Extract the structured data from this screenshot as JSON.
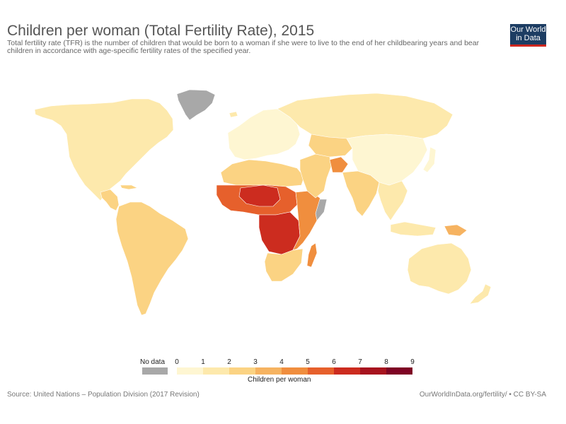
{
  "header": {
    "title": "Children per woman (Total Fertility Rate), 2015",
    "subtitle": "Total fertility rate (TFR) is the number of children that would be born to a woman if she were to live to the end of her childbearing years and bear children in accordance with age-specific fertility rates of the specified year."
  },
  "logo": {
    "line1": "Our World",
    "line2": "in Data"
  },
  "legend": {
    "no_data_label": "No data",
    "no_data_color": "#a8a8a8",
    "ticks": [
      "0",
      "1",
      "2",
      "3",
      "4",
      "5",
      "6",
      "7",
      "8",
      "9"
    ],
    "colors": [
      "#fef6d2",
      "#fde9ac",
      "#fbd383",
      "#f6b361",
      "#f08e3e",
      "#e6602c",
      "#cc2c1f",
      "#a7131e",
      "#7e0324"
    ],
    "title": "Children per woman"
  },
  "footer": {
    "source": "Source: United Nations – Population Division (2017 Revision)",
    "credit": "OurWorldInData.org/fertility/ • CC BY-SA"
  }
}
